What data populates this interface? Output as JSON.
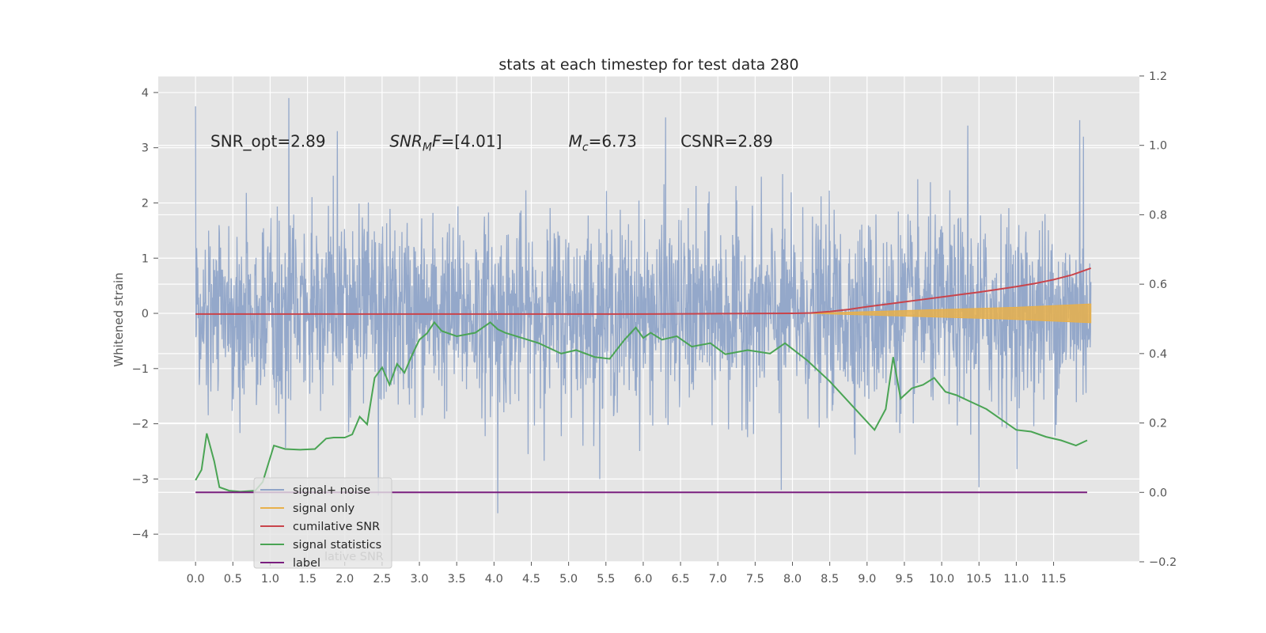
{
  "chart_data": {
    "type": "line",
    "title": "stats at each timestep for test data 280",
    "ylabel": "Whitened strain",
    "xlabel": "",
    "y2label": "",
    "xlim": [
      -0.5,
      12.65
    ],
    "ylim": [
      -4.5,
      4.3
    ],
    "y2lim": [
      -0.2,
      1.2
    ],
    "x_ticks": [
      "0.0",
      "0.5",
      "1.0",
      "1.5",
      "2.0",
      "2.5",
      "3.0",
      "3.5",
      "4.0",
      "4.5",
      "5.0",
      "5.5",
      "6.0",
      "6.5",
      "7.0",
      "7.5",
      "8.0",
      "8.5",
      "9.0",
      "9.5",
      "10.0",
      "10.5",
      "11.0",
      "11.5"
    ],
    "y_ticks": [
      4,
      3,
      2,
      1,
      0,
      -1,
      -2,
      -3,
      -4
    ],
    "y_tick_labels": [
      "4",
      "3",
      "2",
      "1",
      "0",
      "−1",
      "−2",
      "−3",
      "−4"
    ],
    "y2_ticks": [
      1.2,
      1.0,
      0.8,
      0.6,
      0.4,
      0.2,
      0.0,
      -0.2
    ],
    "y2_tick_labels": [
      "1.2",
      "1.0",
      "0.8",
      "0.6",
      "0.4",
      "0.2",
      "0.0",
      "−0.2"
    ],
    "grid": true,
    "legend_placement": "lower-left",
    "annotations": [
      {
        "id": "snr-opt",
        "text": "SNR_opt=2.89",
        "x": 0.2,
        "y": 3.1
      },
      {
        "id": "snr-mf",
        "text": "SNR_MF=[4.01]",
        "x": 2.6,
        "y": 3.1
      },
      {
        "id": "mc",
        "text": "M_c=6.73",
        "x": 5.0,
        "y": 3.1
      },
      {
        "id": "csnr",
        "text": "CSNR=2.89",
        "x": 6.5,
        "y": 3.1
      }
    ],
    "series": [
      {
        "name": "signal+ noise",
        "axis": "left",
        "color": "#8fa4c8",
        "kind": "noise-band",
        "x_range": [
          0.0,
          12.0
        ],
        "typical_range": [
          -2.0,
          2.2
        ],
        "spikes": [
          {
            "x": 0.0,
            "y": 3.75
          },
          {
            "x": 1.25,
            "y": 3.9
          },
          {
            "x": 6.3,
            "y": 3.55
          },
          {
            "x": 11.85,
            "y": 3.5
          },
          {
            "x": 10.35,
            "y": 3.4
          },
          {
            "x": 4.05,
            "y": -3.62
          },
          {
            "x": 2.45,
            "y": -3.3
          },
          {
            "x": 7.85,
            "y": -3.2
          },
          {
            "x": 10.5,
            "y": -3.15
          },
          {
            "x": 11.9,
            "y": 3.2
          },
          {
            "x": 1.9,
            "y": 3.3
          }
        ]
      },
      {
        "name": "signal only",
        "axis": "left",
        "color": "#e8b04b",
        "x": [
          8.2,
          9.0,
          10.0,
          11.0,
          12.0
        ],
        "upper": [
          0.0,
          0.03,
          0.07,
          0.11,
          0.17
        ],
        "lower": [
          0.0,
          -0.03,
          -0.07,
          -0.11,
          -0.17
        ]
      },
      {
        "name": "cumilative SNR",
        "axis": "right",
        "color": "#c9444b",
        "x": [
          0.0,
          1.0,
          2.0,
          3.0,
          4.0,
          5.0,
          6.0,
          7.0,
          8.0,
          8.25,
          8.5,
          8.75,
          9.0,
          9.25,
          9.5,
          9.75,
          10.0,
          10.25,
          10.5,
          10.75,
          11.0,
          11.25,
          11.5,
          11.75,
          12.0
        ],
        "values": [
          0.514,
          0.514,
          0.514,
          0.514,
          0.514,
          0.514,
          0.514,
          0.515,
          0.516,
          0.517,
          0.521,
          0.527,
          0.535,
          0.542,
          0.549,
          0.556,
          0.563,
          0.57,
          0.577,
          0.585,
          0.593,
          0.602,
          0.613,
          0.627,
          0.646
        ]
      },
      {
        "name": "signal statistics",
        "axis": "right",
        "color": "#4aa454",
        "x": [
          0.0,
          0.08,
          0.15,
          0.25,
          0.32,
          0.45,
          0.6,
          0.8,
          0.9,
          1.05,
          1.2,
          1.4,
          1.6,
          1.75,
          1.85,
          2.0,
          2.1,
          2.2,
          2.3,
          2.4,
          2.5,
          2.6,
          2.7,
          2.8,
          2.9,
          3.0,
          3.1,
          3.2,
          3.3,
          3.5,
          3.75,
          3.95,
          4.05,
          4.15,
          4.3,
          4.6,
          4.9,
          5.1,
          5.35,
          5.55,
          5.75,
          5.9,
          6.0,
          6.1,
          6.25,
          6.45,
          6.65,
          6.9,
          7.1,
          7.4,
          7.7,
          7.9,
          8.2,
          8.5,
          8.8,
          9.1,
          9.25,
          9.35,
          9.45,
          9.6,
          9.75,
          9.9,
          10.05,
          10.2,
          10.4,
          10.6,
          10.8,
          11.0,
          11.2,
          11.4,
          11.6,
          11.8,
          11.95
        ],
        "values": [
          0.035,
          0.065,
          0.17,
          0.09,
          0.015,
          0.005,
          0.002,
          0.005,
          0.03,
          0.135,
          0.125,
          0.123,
          0.125,
          0.155,
          0.158,
          0.158,
          0.167,
          0.218,
          0.196,
          0.33,
          0.36,
          0.31,
          0.37,
          0.345,
          0.395,
          0.44,
          0.458,
          0.49,
          0.465,
          0.45,
          0.46,
          0.49,
          0.47,
          0.46,
          0.45,
          0.43,
          0.4,
          0.41,
          0.39,
          0.385,
          0.44,
          0.475,
          0.445,
          0.46,
          0.44,
          0.45,
          0.42,
          0.43,
          0.398,
          0.41,
          0.4,
          0.43,
          0.38,
          0.32,
          0.25,
          0.18,
          0.24,
          0.39,
          0.27,
          0.3,
          0.31,
          0.33,
          0.29,
          0.28,
          0.26,
          0.24,
          0.21,
          0.18,
          0.175,
          0.16,
          0.15,
          0.135,
          0.15
        ]
      },
      {
        "name": "label",
        "axis": "right",
        "color": "#7a1f7f",
        "x": [
          0.0,
          11.95
        ],
        "values": [
          0.0,
          0.0
        ]
      }
    ],
    "legend_ghost_text": "lative SNR"
  }
}
